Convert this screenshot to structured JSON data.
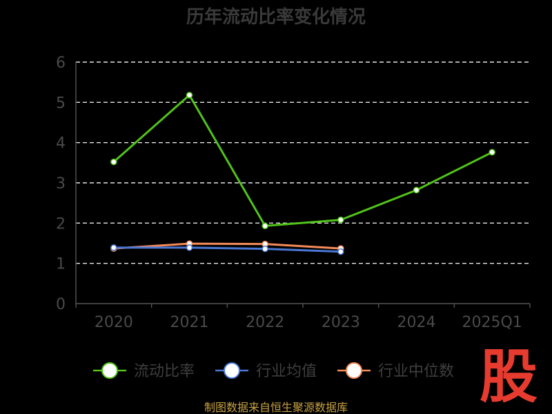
{
  "chart_data": {
    "type": "line",
    "title": "历年流动比率变化情况",
    "categories": [
      "2020",
      "2021",
      "2022",
      "2023",
      "2024",
      "2025Q1"
    ],
    "ylim": [
      0,
      6
    ],
    "yticks": [
      "0",
      "1",
      "2",
      "3",
      "4",
      "5",
      "6"
    ],
    "grid": true,
    "legend_position": "bottom",
    "series": [
      {
        "name": "流动比率",
        "color": "#52c41a",
        "values": [
          3.52,
          5.18,
          1.93,
          2.08,
          2.82,
          3.76
        ]
      },
      {
        "name": "行业均值",
        "color": "#4a78d6",
        "values": [
          1.39,
          1.39,
          1.36,
          1.29,
          null,
          null
        ]
      },
      {
        "name": "行业中位数",
        "color": "#f58b5a",
        "values": [
          1.37,
          1.49,
          1.48,
          1.37,
          null,
          null
        ]
      }
    ]
  },
  "source": "制图数据来自恒生聚源数据库",
  "logo_text": "股"
}
